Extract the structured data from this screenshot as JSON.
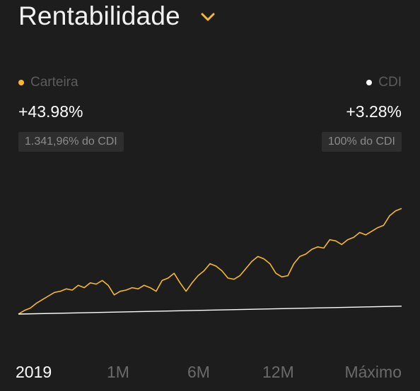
{
  "header": {
    "title": "Rentabilidade",
    "chevron_icon": "chevron-down-icon"
  },
  "colors": {
    "background": "#1d1d1d",
    "accent": "#f5b82e",
    "cdi": "#ffffff"
  },
  "legend": {
    "carteira": {
      "label": "Carteira",
      "value": "+43.98%",
      "badge": "1.341,96% do CDI",
      "color": "#f5b82e"
    },
    "cdi": {
      "label": "CDI",
      "value": "+3.28%",
      "badge": "100% do CDI",
      "color": "#ffffff"
    }
  },
  "chart_data": {
    "type": "line",
    "title": "",
    "xlabel": "",
    "ylabel": "",
    "series": [
      {
        "name": "Carteira",
        "color": "#f5b82e",
        "values": [
          0,
          1.5,
          2.5,
          4.5,
          6,
          7.5,
          9,
          9.5,
          10.5,
          10,
          12,
          11,
          13,
          12.5,
          14,
          12,
          8,
          9.5,
          10,
          11,
          10.5,
          12,
          11,
          9.5,
          14,
          15,
          17,
          13,
          9.5,
          13,
          16,
          18,
          21,
          20,
          18,
          15,
          14.5,
          16,
          19,
          22,
          24,
          23,
          21,
          17,
          15.5,
          16,
          21,
          24,
          25,
          27,
          28,
          27.5,
          31,
          30.5,
          29,
          31,
          32,
          34,
          33,
          34.5,
          36,
          37,
          41,
          43,
          44
        ]
      },
      {
        "name": "CDI",
        "color": "#ffffff",
        "values": [
          0,
          3.28
        ]
      }
    ],
    "ylim": [
      0,
      45
    ]
  },
  "tabs": [
    {
      "label": "2019",
      "active": true
    },
    {
      "label": "1M",
      "active": false
    },
    {
      "label": "6M",
      "active": false
    },
    {
      "label": "12M",
      "active": false
    },
    {
      "label": "Máximo",
      "active": false
    }
  ]
}
